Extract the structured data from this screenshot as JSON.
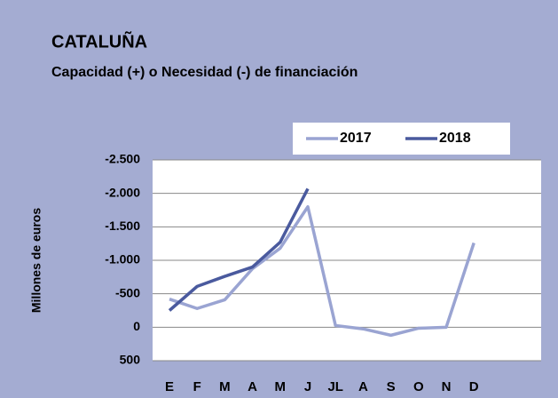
{
  "chart_data": {
    "type": "line",
    "title": "CATALUÑA",
    "subtitle": "Capacidad (+) o Necesidad (-) de financiación",
    "y_label": "Millones de euros",
    "categories": [
      "E",
      "F",
      "M",
      "A",
      "M",
      "J",
      "JL",
      "A",
      "S",
      "O",
      "N",
      "D"
    ],
    "series": [
      {
        "name": "2017",
        "color": "#9aa4d2",
        "values": [
          -420,
          -280,
          -410,
          -875,
          -1180,
          -1800,
          -25,
          25,
          120,
          15,
          0,
          -1260
        ]
      },
      {
        "name": "2018",
        "color": "#4a5a9e",
        "values": [
          -250,
          -610,
          -760,
          -900,
          -1270,
          -2070,
          null,
          null,
          null,
          null,
          null,
          null
        ]
      }
    ],
    "ylim": [
      -2500,
      500
    ],
    "y_inverted": true,
    "yticks": [
      {
        "value": -2500,
        "label": "-2.500"
      },
      {
        "value": -2000,
        "label": "-2.000"
      },
      {
        "value": -1500,
        "label": "-1.500"
      },
      {
        "value": -1000,
        "label": "-1.000"
      },
      -500,
      0,
      500
    ],
    "grid": true,
    "legend": "top"
  }
}
